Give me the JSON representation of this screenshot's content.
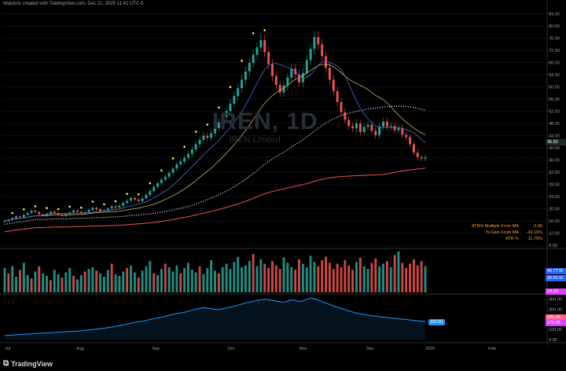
{
  "header": {
    "attribution": "Walckrie created with TradingView.com, Dec 21, 2025 11:41 UTC-5"
  },
  "watermark": {
    "symbol": "IREN, 1D",
    "name": "IREN Limited"
  },
  "stats": {
    "rows": [
      {
        "label": "ATR% Multiple From MA",
        "value": "-2.06"
      },
      {
        "label": "% Gain From MA",
        "value": "-24.16%"
      },
      {
        "label": "ATR %",
        "value": "11.75%"
      }
    ]
  },
  "tags": {
    "price": "36.92",
    "vol1": "40.77 M",
    "vol2": "30.81 M",
    "vol3": "24.29",
    "rs1": "195.49",
    "rs2": "175.96",
    "rs_badge": "RS 50"
  },
  "brand": {
    "logo_text": "TradingView",
    "logo_mark": "⧉"
  },
  "colors": {
    "up": "#26a69a",
    "down": "#ef5350",
    "bg": "#000000",
    "grid": "#1a1d24",
    "ma_slow": "#ef5350",
    "ma_mid": "#c9b458",
    "ma_fast": "#4a6fd6",
    "dots": "#ffee58",
    "rs": "#2196f3",
    "rs_magenta": "#e040fb"
  },
  "chart_data": [
    {
      "type": "candlestick",
      "title": "IREN, 1D",
      "y_axis": {
        "ticks": [
          "84.00",
          "80.00",
          "76.00",
          "72.00",
          "68.00",
          "64.00",
          "60.00",
          "56.00",
          "52.00",
          "48.00",
          "44.00",
          "40.00",
          "36.00",
          "32.00",
          "28.00",
          "24.00",
          "20.00",
          "16.00",
          "12.00",
          "8.00"
        ],
        "range": [
          8,
          86
        ]
      },
      "x_axis": {
        "ticks": [
          "Jul",
          "Aug",
          "Sep",
          "Oct",
          "Nov",
          "Dec",
          "2026",
          "Feb"
        ]
      },
      "last_price": 36.92,
      "close_series": [
        16,
        16.4,
        16.9,
        17.5,
        17.2,
        18,
        18.6,
        19.3,
        18.9,
        18.2,
        17.8,
        18.4,
        19,
        18.6,
        18.1,
        17.7,
        18.3,
        18.8,
        19.4,
        19,
        18.5,
        18.9,
        19.6,
        20.3,
        19.8,
        19.2,
        19.5,
        20.1,
        20.8,
        20.4,
        21,
        21.9,
        22.6,
        23.5,
        23,
        22.5,
        23.4,
        24.6,
        25.8,
        27.2,
        28.4,
        29.6,
        30.5,
        31.8,
        33.2,
        34.6,
        35.5,
        36.7,
        38,
        39.5,
        41.2,
        42.6,
        44,
        43.3,
        44.8,
        46.5,
        48.4,
        50.2,
        52.1,
        54.5,
        57,
        59.6,
        62.4,
        65.1,
        67.9,
        70.6,
        73,
        75.4,
        71.5,
        67.5,
        63.6,
        60.7,
        58.2,
        60.5,
        63.1,
        66,
        64.2,
        61.5,
        64.6,
        68.8,
        72.5,
        76.4,
        74,
        70.1,
        66.3,
        62.4,
        58.6,
        55.1,
        51.7,
        49.2,
        47.1,
        46.4,
        48,
        45.2,
        46.9,
        47.6,
        45.6,
        44.2,
        47,
        48.6,
        46.9,
        47.2,
        45.8,
        46.5,
        44.3,
        43.5,
        41.2,
        38.4,
        36.9,
        36.5,
        36.92
      ]
    },
    {
      "type": "bar",
      "title": "Volume",
      "y_axis": {
        "ticks": [
          "40.77 M",
          "30.81 M",
          "24.29"
        ]
      },
      "values": [
        28,
        22,
        30,
        18,
        26,
        34,
        20,
        16,
        24,
        30,
        22,
        19,
        14,
        26,
        21,
        17,
        23,
        28,
        19,
        15,
        20,
        24,
        27,
        29,
        25,
        22,
        18,
        26,
        33,
        21,
        19,
        24,
        28,
        31,
        23,
        17,
        25,
        30,
        36,
        22,
        20,
        27,
        33,
        29,
        24,
        31,
        22,
        28,
        34,
        26,
        23,
        30,
        21,
        28,
        37,
        25,
        22,
        29,
        33,
        27,
        35,
        41,
        29,
        31,
        36,
        44,
        30,
        38,
        33,
        28,
        36,
        31,
        27,
        40,
        34,
        29,
        26,
        38,
        33,
        29,
        42,
        35,
        30,
        37,
        41,
        34,
        27,
        33,
        29,
        37,
        31,
        26,
        35,
        40,
        30,
        27,
        34,
        39,
        30,
        33,
        36,
        29,
        43,
        47,
        34,
        28,
        33,
        38,
        31,
        36,
        30
      ],
      "up": [
        1,
        0,
        1,
        1,
        0,
        1,
        1,
        0,
        1,
        0,
        1,
        1,
        0,
        1,
        1,
        0,
        1,
        1,
        0,
        1,
        1,
        0,
        1,
        1,
        0,
        1,
        1,
        1,
        0,
        1,
        1,
        1,
        0,
        1,
        1,
        0,
        1,
        1,
        1,
        0,
        1,
        1,
        0,
        1,
        1,
        1,
        0,
        1,
        1,
        1,
        1,
        0,
        1,
        1,
        1,
        1,
        0,
        1,
        1,
        1,
        1,
        1,
        1,
        1,
        1,
        0,
        1,
        1,
        0,
        0,
        0,
        0,
        0,
        1,
        1,
        1,
        0,
        0,
        1,
        1,
        1,
        1,
        0,
        0,
        0,
        0,
        0,
        0,
        0,
        0,
        0,
        0,
        1,
        0,
        1,
        1,
        0,
        0,
        1,
        1,
        0,
        1,
        0,
        1,
        0,
        0,
        0,
        0,
        0,
        0,
        1
      ]
    },
    {
      "type": "line",
      "title": "Relative Strength",
      "y_axis": {
        "ticks": [
          "400.00",
          "300.00",
          "200.00",
          "100.00",
          "0.00"
        ],
        "range": [
          0,
          420
        ]
      },
      "series": [
        {
          "values": [
            40,
            42,
            45,
            48,
            50,
            52,
            55,
            57,
            60,
            62,
            64,
            66,
            68,
            70,
            72,
            75,
            78,
            80,
            82,
            85,
            88,
            92,
            96,
            100,
            104,
            108,
            112,
            118,
            124,
            130,
            138,
            146,
            154,
            162,
            170,
            176,
            182,
            190,
            198,
            206,
            214,
            222,
            230,
            240,
            250,
            258,
            264,
            270,
            280,
            290,
            300,
            308,
            316,
            310,
            305,
            300,
            296,
            304,
            312,
            320,
            330,
            340,
            352,
            360,
            370,
            378,
            386,
            394,
            400,
            396,
            388,
            380,
            374,
            370,
            380,
            392,
            388,
            376,
            384,
            398,
            412,
            404,
            390,
            376,
            362,
            348,
            334,
            320,
            308,
            296,
            284,
            272,
            262,
            254,
            248,
            242,
            236,
            230,
            226,
            222,
            218,
            214,
            210,
            206,
            202,
            198,
            194,
            190,
            186,
            183,
            180
          ]
        }
      ]
    }
  ]
}
